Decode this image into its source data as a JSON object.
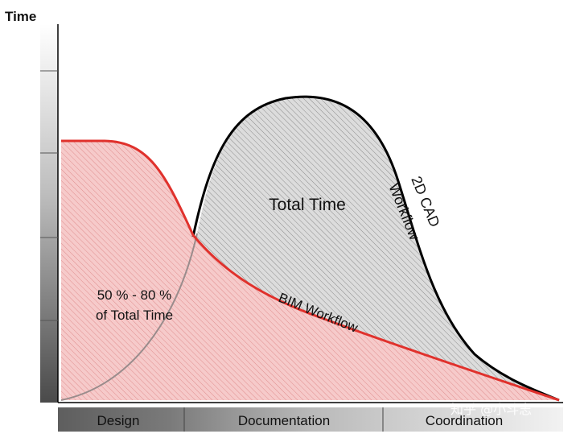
{
  "axis": {
    "y_label": "Time"
  },
  "phases": [
    {
      "label": "Design"
    },
    {
      "label": "Documentation"
    },
    {
      "label": "Coordination"
    }
  ],
  "curves": {
    "cad_label_line1": "2D CAD",
    "cad_label_line2": "Workflow",
    "bim_label": "BIM Workflow",
    "total_time_label": "Total Time",
    "percent_label_line1": "50 % - 80 %",
    "percent_label_line2": "of Total Time"
  },
  "colors": {
    "bim_curve": "#e0312c",
    "bim_fill": "#f4c5c5",
    "cad_curve": "#000000",
    "cad_fill": "#d9d9d9",
    "phase_bar": "#6e6e6e"
  },
  "watermark": "知乎 @小斗志"
}
